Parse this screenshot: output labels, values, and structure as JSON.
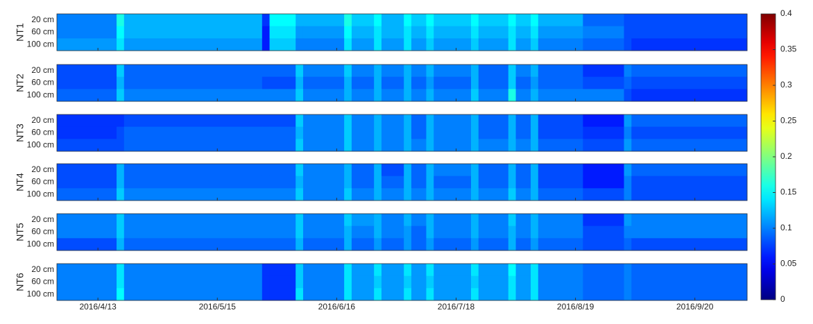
{
  "chart_data": {
    "type": "heatmap",
    "colormap": "jet",
    "x": [
      "2016/4/2",
      "2016/4/18",
      "2016/4/20",
      "2016/5/27",
      "2016/5/29",
      "2016/6/5",
      "2016/6/7",
      "2016/6/18",
      "2016/6/20",
      "2016/6/26",
      "2016/6/28",
      "2016/7/4",
      "2016/7/6",
      "2016/7/10",
      "2016/7/12",
      "2016/7/22",
      "2016/7/24",
      "2016/8/1",
      "2016/8/3",
      "2016/8/7",
      "2016/8/9",
      "2016/8/21",
      "2016/9/1",
      "2016/9/3"
    ],
    "xlim": [
      "2016/4/2",
      "2016/10/4"
    ],
    "xticks": [
      "2016/4/13",
      "2016/5/15",
      "2016/6/16",
      "2016/7/18",
      "2016/8/19",
      "2016/9/20"
    ],
    "rows": [
      "20 cm",
      "60 cm",
      "100 cm"
    ],
    "clim": [
      0,
      0.4
    ],
    "cticks": [
      0,
      0.05,
      0.1,
      0.15,
      0.2,
      0.25,
      0.3,
      0.35,
      0.4
    ],
    "series": [
      {
        "name": "NT1",
        "values": [
          [
            0.1,
            0.16,
            0.12,
            0.07,
            0.15,
            0.12,
            0.12,
            0.16,
            0.13,
            0.15,
            0.12,
            0.15,
            0.13,
            0.15,
            0.13,
            0.15,
            0.13,
            0.15,
            0.13,
            0.15,
            0.12,
            0.09,
            0.08,
            0.08
          ],
          [
            0.1,
            0.15,
            0.12,
            0.06,
            0.14,
            0.11,
            0.11,
            0.15,
            0.12,
            0.14,
            0.12,
            0.14,
            0.12,
            0.14,
            0.12,
            0.14,
            0.12,
            0.14,
            0.12,
            0.14,
            0.11,
            0.1,
            0.08,
            0.08
          ],
          [
            0.11,
            0.14,
            0.11,
            0.06,
            0.13,
            0.1,
            0.1,
            0.14,
            0.11,
            0.14,
            0.11,
            0.14,
            0.11,
            0.13,
            0.11,
            0.13,
            0.11,
            0.14,
            0.11,
            0.13,
            0.1,
            0.09,
            0.08,
            0.07
          ]
        ]
      },
      {
        "name": "NT2",
        "values": [
          [
            0.08,
            0.13,
            0.09,
            0.09,
            0.09,
            0.13,
            0.1,
            0.13,
            0.1,
            0.12,
            0.1,
            0.12,
            0.1,
            0.12,
            0.1,
            0.12,
            0.09,
            0.13,
            0.1,
            0.12,
            0.09,
            0.07,
            0.1,
            0.09
          ],
          [
            0.08,
            0.12,
            0.09,
            0.08,
            0.08,
            0.12,
            0.09,
            0.12,
            0.09,
            0.12,
            0.09,
            0.12,
            0.09,
            0.11,
            0.09,
            0.12,
            0.09,
            0.13,
            0.09,
            0.11,
            0.09,
            0.08,
            0.09,
            0.08
          ],
          [
            0.09,
            0.13,
            0.1,
            0.1,
            0.1,
            0.13,
            0.1,
            0.12,
            0.1,
            0.12,
            0.1,
            0.12,
            0.1,
            0.12,
            0.1,
            0.13,
            0.1,
            0.16,
            0.1,
            0.12,
            0.1,
            0.1,
            0.08,
            0.07
          ]
        ]
      },
      {
        "name": "NT3",
        "values": [
          [
            0.07,
            0.07,
            0.08,
            0.08,
            0.08,
            0.13,
            0.1,
            0.13,
            0.1,
            0.12,
            0.1,
            0.12,
            0.09,
            0.12,
            0.1,
            0.12,
            0.09,
            0.12,
            0.09,
            0.12,
            0.08,
            0.06,
            0.11,
            0.09
          ],
          [
            0.07,
            0.08,
            0.09,
            0.09,
            0.09,
            0.12,
            0.1,
            0.13,
            0.1,
            0.12,
            0.1,
            0.12,
            0.09,
            0.12,
            0.1,
            0.12,
            0.09,
            0.12,
            0.09,
            0.12,
            0.08,
            0.07,
            0.1,
            0.08
          ],
          [
            0.08,
            0.08,
            0.09,
            0.09,
            0.09,
            0.13,
            0.1,
            0.13,
            0.1,
            0.12,
            0.1,
            0.12,
            0.1,
            0.12,
            0.1,
            0.12,
            0.1,
            0.12,
            0.1,
            0.12,
            0.09,
            0.08,
            0.11,
            0.09
          ]
        ]
      },
      {
        "name": "NT4",
        "values": [
          [
            0.08,
            0.12,
            0.09,
            0.09,
            0.09,
            0.13,
            0.1,
            0.12,
            0.09,
            0.12,
            0.08,
            0.12,
            0.09,
            0.12,
            0.1,
            0.12,
            0.09,
            0.12,
            0.09,
            0.12,
            0.08,
            0.06,
            0.11,
            0.09
          ],
          [
            0.08,
            0.12,
            0.09,
            0.09,
            0.09,
            0.12,
            0.1,
            0.12,
            0.09,
            0.12,
            0.09,
            0.12,
            0.09,
            0.12,
            0.09,
            0.12,
            0.09,
            0.12,
            0.09,
            0.12,
            0.08,
            0.06,
            0.1,
            0.08
          ],
          [
            0.09,
            0.13,
            0.1,
            0.1,
            0.1,
            0.13,
            0.1,
            0.13,
            0.1,
            0.12,
            0.1,
            0.12,
            0.1,
            0.12,
            0.1,
            0.12,
            0.1,
            0.13,
            0.1,
            0.12,
            0.09,
            0.08,
            0.1,
            0.08
          ]
        ]
      },
      {
        "name": "NT5",
        "values": [
          [
            0.1,
            0.13,
            0.1,
            0.1,
            0.1,
            0.13,
            0.1,
            0.13,
            0.11,
            0.12,
            0.1,
            0.12,
            0.1,
            0.12,
            0.1,
            0.12,
            0.1,
            0.13,
            0.1,
            0.12,
            0.1,
            0.07,
            0.11,
            0.1
          ],
          [
            0.1,
            0.13,
            0.1,
            0.1,
            0.1,
            0.13,
            0.1,
            0.12,
            0.1,
            0.12,
            0.1,
            0.11,
            0.09,
            0.12,
            0.1,
            0.12,
            0.1,
            0.12,
            0.1,
            0.12,
            0.1,
            0.08,
            0.1,
            0.1
          ],
          [
            0.08,
            0.12,
            0.09,
            0.09,
            0.09,
            0.12,
            0.09,
            0.12,
            0.09,
            0.11,
            0.09,
            0.11,
            0.09,
            0.11,
            0.09,
            0.11,
            0.09,
            0.12,
            0.09,
            0.11,
            0.09,
            0.08,
            0.09,
            0.08
          ]
        ]
      },
      {
        "name": "NT6",
        "values": [
          [
            0.1,
            0.14,
            0.1,
            0.07,
            0.07,
            0.13,
            0.1,
            0.14,
            0.11,
            0.14,
            0.11,
            0.14,
            0.11,
            0.14,
            0.11,
            0.14,
            0.11,
            0.15,
            0.11,
            0.14,
            0.1,
            0.09,
            0.1,
            0.09
          ],
          [
            0.1,
            0.14,
            0.1,
            0.07,
            0.07,
            0.13,
            0.1,
            0.14,
            0.11,
            0.13,
            0.11,
            0.13,
            0.11,
            0.13,
            0.11,
            0.13,
            0.11,
            0.14,
            0.11,
            0.14,
            0.1,
            0.09,
            0.1,
            0.09
          ],
          [
            0.1,
            0.15,
            0.1,
            0.07,
            0.07,
            0.14,
            0.1,
            0.14,
            0.11,
            0.14,
            0.11,
            0.14,
            0.11,
            0.14,
            0.11,
            0.14,
            0.11,
            0.14,
            0.11,
            0.14,
            0.1,
            0.09,
            0.1,
            0.09
          ]
        ]
      }
    ]
  }
}
